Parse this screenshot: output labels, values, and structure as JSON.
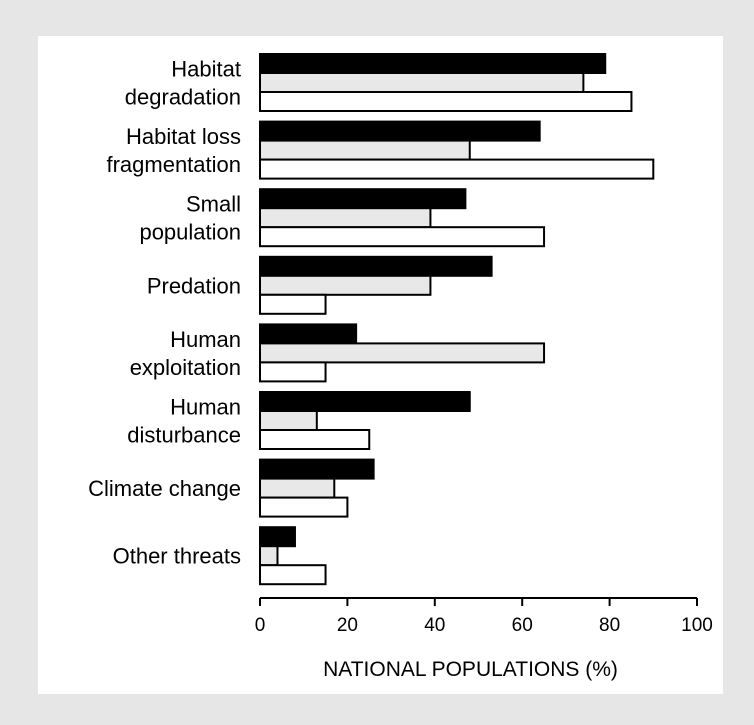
{
  "chart_data": {
    "type": "bar",
    "orientation": "horizontal",
    "categories": [
      [
        "Habitat",
        "degradation"
      ],
      [
        "Habitat loss",
        "fragmentation"
      ],
      [
        "Small",
        "population"
      ],
      [
        "Predation"
      ],
      [
        "Human",
        "exploitation"
      ],
      [
        "Human",
        "disturbance"
      ],
      [
        "Climate change"
      ],
      [
        "Other threats"
      ]
    ],
    "series": [
      {
        "color": "#000000",
        "values": [
          79,
          64,
          47,
          53,
          22,
          48,
          26,
          8
        ]
      },
      {
        "color": "#e8e8e8",
        "values": [
          74,
          48,
          39,
          39,
          65,
          13,
          17,
          4
        ]
      },
      {
        "color": "#ffffff",
        "values": [
          85,
          90,
          65,
          15,
          15,
          25,
          20,
          15
        ]
      }
    ],
    "xlabel": "NATIONAL POPULATIONS (%)",
    "xlim": [
      0,
      100
    ],
    "xticks": [
      "0",
      "20",
      "40",
      "60",
      "80",
      "100"
    ],
    "grid": false,
    "legend": "none"
  }
}
